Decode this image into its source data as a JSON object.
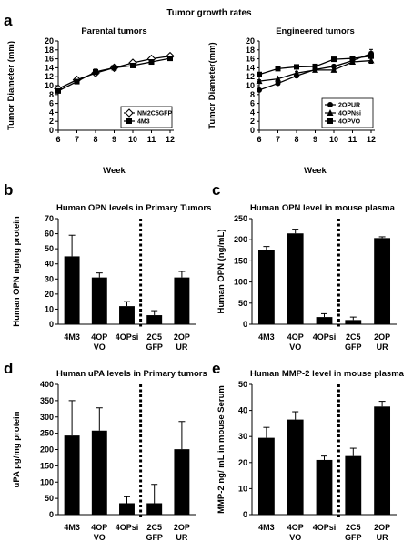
{
  "figure_title": "Tumor growth rates",
  "panel_labels": [
    "a",
    "b",
    "c",
    "d",
    "e"
  ],
  "chart_data": [
    {
      "id": "a1",
      "type": "line",
      "title": "Parental tumors",
      "xlabel": "Week",
      "ylabel": "Tumor Diameter (mm)",
      "xlim": [
        6,
        12
      ],
      "ylim": [
        0,
        20
      ],
      "x": [
        6,
        7,
        8,
        9,
        10,
        11,
        12
      ],
      "yticks": [
        0,
        2,
        4,
        6,
        8,
        10,
        12,
        14,
        16,
        18,
        20
      ],
      "legend_position": "bottom-right",
      "series": [
        {
          "name": "NM2C5GFP",
          "marker": "diamond-open",
          "values": [
            9.3,
            11.3,
            12.8,
            14.0,
            15.1,
            16.0,
            16.6
          ],
          "errors": [
            0.3,
            0.4,
            0.4,
            0.3,
            0.3,
            0.4,
            0.4
          ]
        },
        {
          "name": "4M3",
          "marker": "square",
          "values": [
            8.8,
            10.9,
            13.1,
            14.0,
            14.5,
            15.3,
            16.1
          ],
          "errors": [
            0.3,
            0.4,
            0.6,
            0.3,
            0.3,
            0.4,
            0.4
          ]
        }
      ]
    },
    {
      "id": "a2",
      "type": "line",
      "title": "Engineered tumors",
      "xlabel": "Week",
      "ylabel": "Tumor Diameter(mm)",
      "xlim": [
        6,
        12
      ],
      "ylim": [
        0,
        20
      ],
      "x": [
        6,
        7,
        8,
        9,
        10,
        11,
        12
      ],
      "yticks": [
        0,
        2,
        4,
        6,
        8,
        10,
        12,
        14,
        16,
        18,
        20
      ],
      "legend_position": "bottom-right",
      "series": [
        {
          "name": "2OPUR",
          "marker": "circle",
          "values": [
            9.0,
            10.5,
            12.2,
            13.6,
            14.3,
            15.6,
            17.2
          ],
          "errors": [
            0.3,
            0.4,
            0.4,
            0.4,
            0.4,
            0.5,
            0.9
          ]
        },
        {
          "name": "4OPNsi",
          "marker": "triangle",
          "values": [
            11.0,
            11.5,
            12.8,
            13.5,
            13.5,
            15.3,
            15.6
          ],
          "errors": [
            0.3,
            0.4,
            0.4,
            0.3,
            0.3,
            0.4,
            0.6
          ]
        },
        {
          "name": "4OPVO",
          "marker": "square",
          "values": [
            12.5,
            13.8,
            14.2,
            14.3,
            15.9,
            16.1,
            16.6
          ],
          "errors": [
            0.3,
            0.4,
            0.4,
            0.3,
            0.4,
            0.4,
            0.5
          ]
        }
      ]
    },
    {
      "id": "b",
      "type": "bar",
      "title": "Human OPN levels in Primary Tumors",
      "ylabel": "Human OPN ng/mg protein",
      "ylim": [
        0,
        70
      ],
      "yticks": [
        0,
        10,
        20,
        30,
        40,
        50,
        60,
        70
      ],
      "categories": [
        "4M3",
        "4OP\nVO",
        "4OPsi",
        "2C5\nGFP",
        "2OP\nUR"
      ],
      "values": [
        45,
        31,
        12,
        6,
        31
      ],
      "errors": [
        14,
        3,
        3,
        3,
        4
      ],
      "divider_after": 3
    },
    {
      "id": "c",
      "type": "bar",
      "title": "Human OPN level in mouse plasma",
      "ylabel": "Human OPN (ng/mL)",
      "ylim": [
        0,
        250
      ],
      "yticks": [
        0,
        50,
        100,
        150,
        200,
        250
      ],
      "categories": [
        "4M3",
        "4OP\nVO",
        "4OPsi",
        "2C5\nGFP",
        "2OP\nUR"
      ],
      "values": [
        176,
        215,
        17,
        10,
        204
      ],
      "errors": [
        8,
        10,
        8,
        7,
        3
      ],
      "divider_after": 3
    },
    {
      "id": "d",
      "type": "bar",
      "title": "Human uPA levels in Primary tumors",
      "ylabel": "uPA pg/mg protein",
      "ylim": [
        0,
        400
      ],
      "yticks": [
        0,
        50,
        100,
        150,
        200,
        250,
        300,
        350,
        400
      ],
      "categories": [
        "4M3",
        "4OP\nVO",
        "4OPsi",
        "2C5\nGFP",
        "2OP\nUR"
      ],
      "values": [
        243,
        258,
        35,
        35,
        201
      ],
      "errors": [
        107,
        70,
        20,
        58,
        85
      ],
      "divider_after": 3
    },
    {
      "id": "e",
      "type": "bar",
      "title": "Human MMP-2 level in mouse plasma",
      "ylabel": "MMP-2 ng/ mL in mouse Serum",
      "ylim": [
        0,
        50
      ],
      "yticks": [
        0,
        10,
        20,
        30,
        40,
        50
      ],
      "categories": [
        "4M3",
        "4OP\nVO",
        "4OPsi",
        "2C5\nGFP",
        "2OP\nUR"
      ],
      "values": [
        29.5,
        36.5,
        21,
        22.5,
        41.5
      ],
      "errors": [
        4,
        3,
        1.5,
        3,
        2
      ],
      "divider_after": 3
    }
  ]
}
